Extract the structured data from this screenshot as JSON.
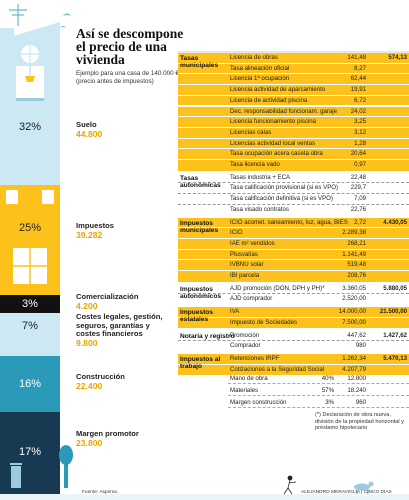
{
  "title": "Así se descompone el precio de una vivienda",
  "subtitle": "Ejemplo para una casa de 140.000 € (precio antes de impuestos)",
  "source": "Fuente: Asprima",
  "credit": "ALEJANDRO MERAVIGLIA | CINCO DÍAS",
  "footnote": "(*) Declaración de obra nueva, división de la propiedad horizontal y préstamo hipotecario",
  "colors": {
    "accent": "#fcc21b",
    "light_blue": "#cbe8f3",
    "teal": "#2a9ab8",
    "navy": "#173a52",
    "black": "#111111"
  },
  "chart_data": {
    "type": "table",
    "title": "Así se descompone el precio de una vivienda",
    "breakdown": [
      {
        "name": "Suelo",
        "pct": "32%",
        "amount": "44.800",
        "color": "#cbe8f3"
      },
      {
        "name": "Impuestos",
        "pct": "25%",
        "amount": "39.282",
        "color": "#fcc21b"
      },
      {
        "name": "Comercialización",
        "pct": "3%",
        "amount": "4.200",
        "color": "#111111"
      },
      {
        "name": "Costes legales, gestión, seguros, garantías y costes financieros",
        "pct": "7%",
        "amount": "9.800",
        "color": "#cbe8f3"
      },
      {
        "name": "Construcción",
        "pct": "16%",
        "amount": "22.400",
        "color": "#2a9ab8"
      },
      {
        "name": "Margen promotor",
        "pct": "17%",
        "amount": "23.800",
        "color": "#173a52"
      }
    ],
    "tax_groups": [
      {
        "name": "Tasas municipales",
        "total": "574,13",
        "rows": [
          [
            "Licencia de obras",
            "141,48"
          ],
          [
            "Tasa alineación oficial",
            "8,27"
          ],
          [
            "Licencia 1ª ocupación",
            "62,44"
          ],
          [
            "Licencia actividad de aparcamiento",
            "19,91"
          ],
          [
            "Licencia de actividad piscina",
            "6,72"
          ],
          [
            "Dec. responsabilidad funcionam. garaje",
            "24,02"
          ],
          [
            "Licencia funcionamiento piscina",
            "3,25"
          ],
          [
            "Licencias calas",
            "3,12"
          ],
          [
            "Licencias actividad local ventas",
            "1,28"
          ],
          [
            "Tasa ocupación acera caseta obra",
            "20,64"
          ],
          [
            "Tasa licencia vado",
            "0,97"
          ]
        ]
      },
      {
        "name": "Tasas autonómicas",
        "total": "",
        "rows": [
          [
            "Tasas industria + ECA",
            "22,48"
          ],
          [
            "Tasa calificación provisional (si es VPO)",
            "229,7"
          ],
          [
            "Tasa calificación definitiva (si es VPO)",
            "7,09"
          ],
          [
            "Tasa visado contratos",
            "22,76"
          ]
        ]
      },
      {
        "name": "Impuestos municipales",
        "total": "4.430,05",
        "rows": [
          [
            "ICIO acomet. saneamiento, luz, agua, BIES",
            "2,72"
          ],
          [
            "ICIO",
            "2.289,38"
          ],
          [
            "IAE m² vendidos",
            "268,21"
          ],
          [
            "Plusvalías",
            "1.141,49"
          ],
          [
            "IVBNU solar",
            "519,48"
          ],
          [
            "IBI parcela",
            "208,76"
          ]
        ]
      },
      {
        "name": "Impuestos autonómicos",
        "total": "5.880,05",
        "rows": [
          [
            "AJD promoción (DON, DPH y PH)*",
            "3.360,05"
          ],
          [
            "AJD comprador",
            "2.520,00"
          ]
        ]
      },
      {
        "name": "Impuestos estatales",
        "total": "21.500,00",
        "rows": [
          [
            "IVA",
            "14.000,00"
          ],
          [
            "Impuesto de Sociedades",
            "7.500,00"
          ]
        ]
      },
      {
        "name": "Notaría y registro",
        "total": "1.427,62",
        "rows": [
          [
            "Promoción",
            "447,62"
          ],
          [
            "Comprador",
            "980"
          ]
        ]
      },
      {
        "name": "Impuestos al trabajo",
        "total": "5.470,13",
        "rows": [
          [
            "Retenciones IRPF",
            "1.262,34"
          ],
          [
            "Cotizaciones a la Seguridad Social",
            "4.207,79"
          ]
        ]
      }
    ],
    "construction": [
      [
        "Mano de obra",
        "40%",
        "12.800"
      ],
      [
        "Materiales",
        "57%",
        "18.240"
      ],
      [
        "Margen construcción",
        "3%",
        "960"
      ]
    ]
  }
}
